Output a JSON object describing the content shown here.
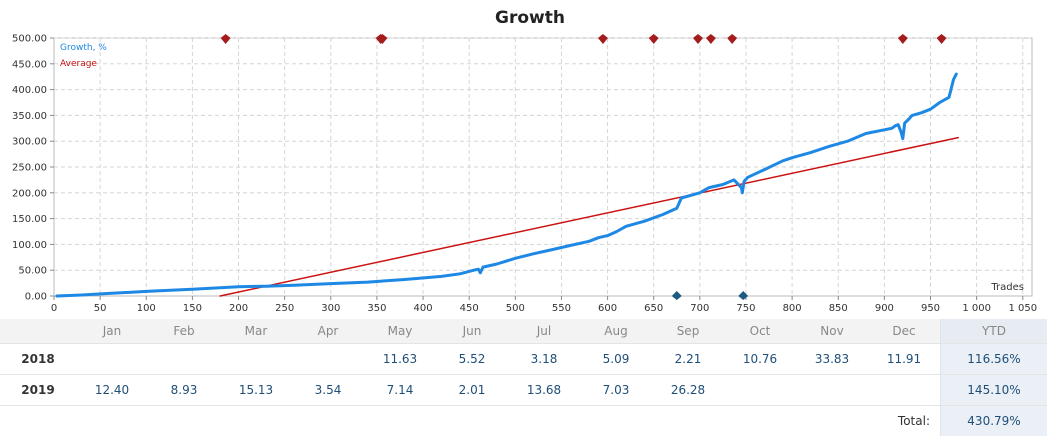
{
  "chart_data": {
    "type": "line",
    "title": "Growth",
    "xlabel": "Trades",
    "ylabel": "",
    "xlim": [
      0,
      1060
    ],
    "ylim": [
      0,
      500
    ],
    "xticks": [
      0,
      50,
      100,
      150,
      200,
      250,
      300,
      350,
      400,
      450,
      500,
      550,
      600,
      650,
      700,
      750,
      800,
      850,
      900,
      950,
      1000,
      1050
    ],
    "xtick_labels": [
      "0",
      "50",
      "100",
      "150",
      "200",
      "250",
      "300",
      "350",
      "400",
      "450",
      "500",
      "550",
      "600",
      "650",
      "700",
      "750",
      "800",
      "850",
      "900",
      "950",
      "1 000",
      "1 050"
    ],
    "yticks": [
      0,
      50,
      100,
      150,
      200,
      250,
      300,
      350,
      400,
      450,
      500
    ],
    "ytick_labels": [
      "0.00",
      "50.00",
      "100.00",
      "150.00",
      "200.00",
      "250.00",
      "300.00",
      "350.00",
      "400.00",
      "450.00",
      "500.00"
    ],
    "grid": true,
    "legend_position": "top-left",
    "series": [
      {
        "name": "Growth, %",
        "color": "#1e88e5",
        "x": [
          3,
          30,
          60,
          100,
          150,
          180,
          200,
          230,
          260,
          300,
          340,
          380,
          420,
          440,
          455,
          460,
          462,
          465,
          480,
          500,
          520,
          540,
          560,
          580,
          590,
          600,
          610,
          620,
          640,
          660,
          675,
          680,
          700,
          710,
          725,
          737,
          745,
          746,
          748,
          752,
          770,
          790,
          800,
          820,
          840,
          860,
          880,
          900,
          908,
          912,
          915,
          918,
          920,
          922,
          926,
          930,
          940,
          950,
          960,
          970,
          975,
          978
        ],
        "y": [
          0,
          2,
          5,
          9,
          13,
          16,
          18,
          19,
          21,
          24,
          27,
          32,
          38,
          43,
          50,
          52,
          45,
          56,
          62,
          73,
          82,
          90,
          98,
          106,
          113,
          117,
          125,
          135,
          145,
          158,
          170,
          190,
          200,
          210,
          216,
          225,
          210,
          200,
          222,
          230,
          245,
          262,
          268,
          278,
          290,
          300,
          315,
          322,
          325,
          330,
          332,
          318,
          305,
          335,
          342,
          350,
          355,
          362,
          375,
          385,
          420,
          430
        ]
      },
      {
        "name": "Average",
        "color": "#cc1111",
        "x": [
          180,
          980
        ],
        "y": [
          0,
          307
        ]
      }
    ],
    "markers": {
      "top_color": "#a51c1c",
      "top_x": [
        186,
        354,
        356,
        595,
        650,
        698,
        712,
        735,
        920,
        962
      ],
      "bottom_color": "#1c5a80",
      "bottom_x": [
        675,
        747
      ]
    }
  },
  "table": {
    "months": [
      "Jan",
      "Feb",
      "Mar",
      "Apr",
      "May",
      "Jun",
      "Jul",
      "Aug",
      "Sep",
      "Oct",
      "Nov",
      "Dec"
    ],
    "ytd_label": "YTD",
    "rows": [
      {
        "year": "2018",
        "values": [
          "",
          "",
          "",
          "",
          "11.63",
          "5.52",
          "3.18",
          "5.09",
          "2.21",
          "10.76",
          "33.83",
          "11.91"
        ],
        "ytd": "116.56%"
      },
      {
        "year": "2019",
        "values": [
          "12.40",
          "8.93",
          "15.13",
          "3.54",
          "7.14",
          "2.01",
          "13.68",
          "7.03",
          "26.28",
          "",
          "",
          ""
        ],
        "ytd": "145.10%"
      }
    ],
    "total_label": "Total:",
    "total_value": "430.79%"
  }
}
